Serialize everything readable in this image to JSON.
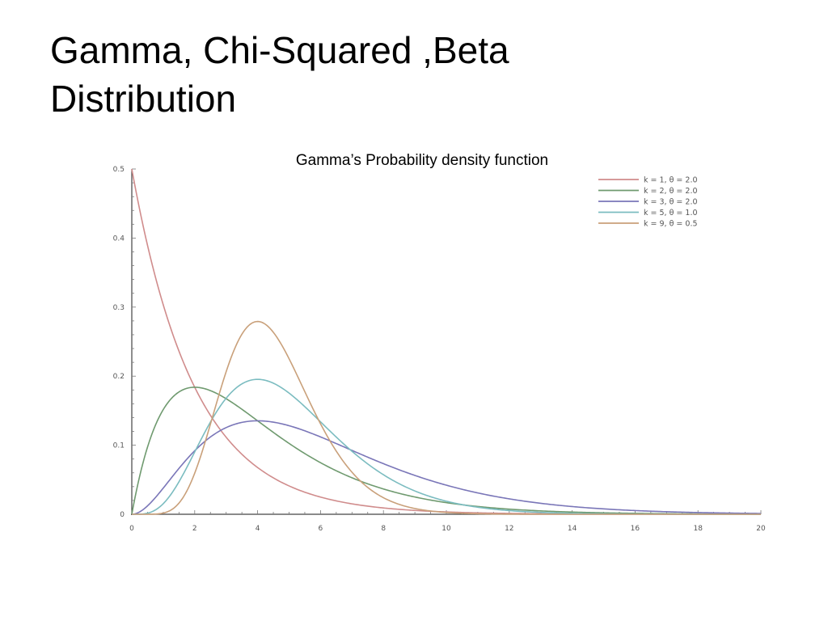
{
  "slide": {
    "title_line1": "Gamma, Chi-Squared ,Beta",
    "title_line2": "Distribution",
    "caption": "Gamma’s Probability density function"
  },
  "chart_data": {
    "type": "line",
    "title": "Gamma’s Probability density function",
    "xlabel": "",
    "ylabel": "",
    "xlim": [
      0,
      20
    ],
    "ylim": [
      0,
      0.5
    ],
    "x_ticks": [
      0,
      2,
      4,
      6,
      8,
      10,
      12,
      14,
      16,
      18,
      20
    ],
    "y_ticks": [
      0,
      0.1,
      0.2,
      0.3,
      0.4,
      0.5
    ],
    "y_tick_labels": [
      "0",
      "0.1",
      "0.2",
      "0.3",
      "0.4",
      "0.5"
    ],
    "legend_position": "top-right",
    "grid": false,
    "series": [
      {
        "name": "k = 1, θ = 2.0",
        "k": 1,
        "theta": 2.0,
        "color": "#d08c8c",
        "x": [
          0,
          1,
          2,
          3,
          4,
          6,
          8,
          10,
          12,
          16,
          20
        ],
        "values": [
          0.5,
          0.303,
          0.184,
          0.112,
          0.068,
          0.025,
          0.009,
          0.003,
          0.001,
          0.0002,
          2e-05
        ]
      },
      {
        "name": "k = 2, θ = 2.0",
        "k": 2,
        "theta": 2.0,
        "color": "#6f9a6f",
        "x": [
          0,
          1,
          2,
          3,
          4,
          6,
          8,
          10,
          12,
          16,
          20
        ],
        "values": [
          0,
          0.152,
          0.184,
          0.167,
          0.135,
          0.075,
          0.037,
          0.017,
          0.007,
          0.001,
          0.0002
        ]
      },
      {
        "name": "k = 3, θ = 2.0",
        "k": 3,
        "theta": 2.0,
        "color": "#7a76b8",
        "x": [
          0,
          1,
          2,
          3,
          4,
          6,
          8,
          10,
          12,
          16,
          20
        ],
        "values": [
          0,
          0.038,
          0.092,
          0.126,
          0.135,
          0.112,
          0.073,
          0.042,
          0.022,
          0.005,
          0.001
        ]
      },
      {
        "name": "k = 5, θ = 1.0",
        "k": 5,
        "theta": 1.0,
        "color": "#7bbcc0",
        "x": [
          0,
          1,
          2,
          3,
          4,
          5,
          6,
          8,
          10,
          12,
          16,
          20
        ],
        "values": [
          0,
          0.015,
          0.09,
          0.168,
          0.195,
          0.175,
          0.134,
          0.057,
          0.019,
          0.005,
          0.0003,
          1e-05
        ]
      },
      {
        "name": "k = 9, θ = 0.5",
        "k": 9,
        "theta": 0.5,
        "color": "#c9a07a",
        "x": [
          0,
          1,
          2,
          3,
          4,
          5,
          6,
          7,
          8,
          10,
          12
        ],
        "values": [
          0,
          0.0003,
          0.03,
          0.162,
          0.279,
          0.251,
          0.149,
          0.065,
          0.022,
          0.002,
          0.0001
        ]
      }
    ]
  }
}
